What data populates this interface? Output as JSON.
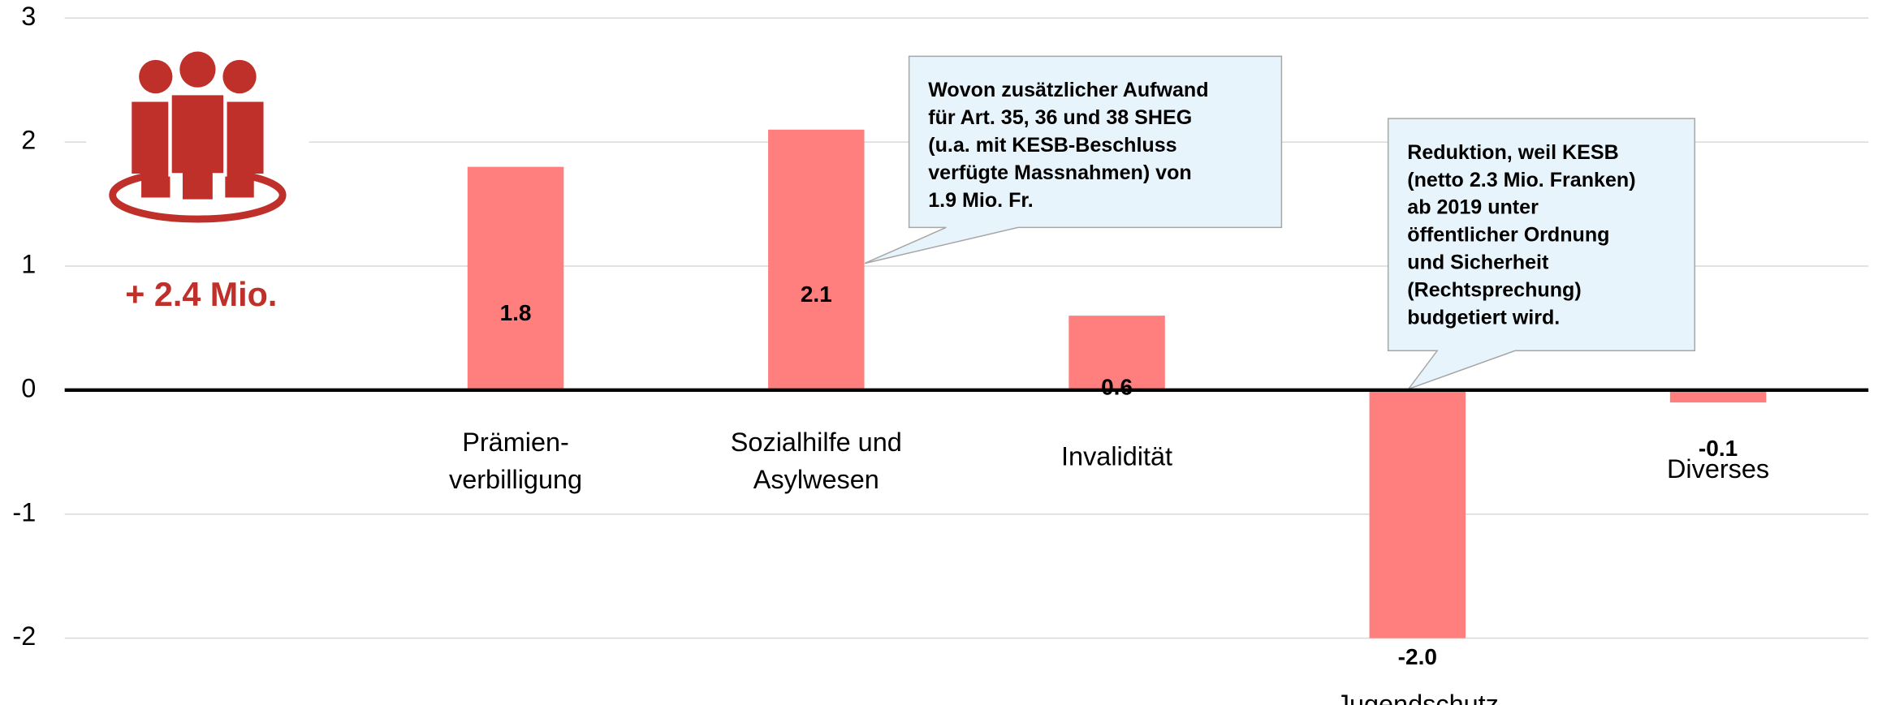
{
  "chart_data": {
    "type": "bar",
    "categories": [
      null,
      "Prämien-\nverbilligung",
      "Sozialhilfe und\nAsylwesen",
      "Invalidität",
      "Jugendschutz",
      "Diverses"
    ],
    "values": [
      null,
      1.8,
      2.1,
      0.6,
      -2.0,
      -0.1
    ],
    "value_labels": [
      null,
      "1.8",
      "2.1",
      "0.6",
      "-2.0",
      "-0.1"
    ],
    "color": "#ff7f7f",
    "ylim": [
      -2.5,
      3
    ],
    "yticks": [
      -2,
      -1,
      0,
      1,
      2,
      3
    ],
    "grid": true,
    "annotations": [
      {
        "text": "+ 2.4 Mio."
      },
      {
        "text": "Wovon zusätzlicher Aufwand\nfür Art. 35, 36 und 38 SHEG\n(u.a. mit KESB-Beschluss\nverfügte Massnahmen) von\n1.9 Mio. Fr."
      },
      {
        "text": "Reduktion, weil KESB\n(netto 2.3 Mio. Franken)\nab 2019 unter\nöffentlicher Ordnung\nund Sicherheit\n(Rechtsprechung)\nbudgetiert wird."
      }
    ]
  }
}
